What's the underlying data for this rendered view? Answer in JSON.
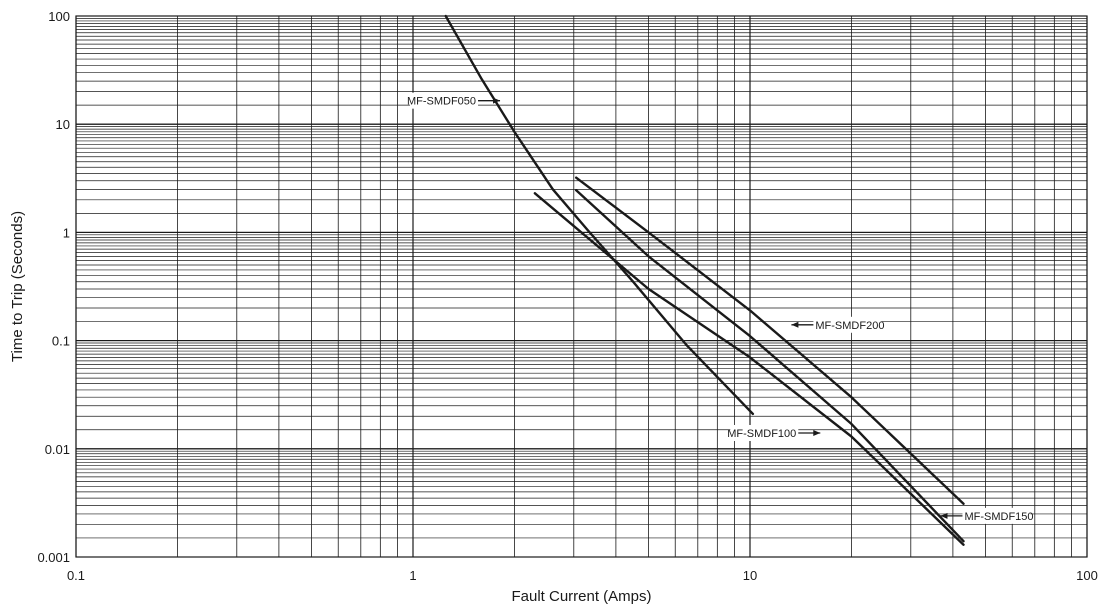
{
  "chart_data": {
    "type": "line",
    "title": "",
    "xlabel": "Fault Current  (Amps)",
    "ylabel": "Time to Trip (Seconds)",
    "x_scale": "log",
    "y_scale": "log",
    "xlim": [
      0.1,
      100
    ],
    "ylim": [
      0.001,
      100
    ],
    "grid": true,
    "x_tick_labels": [
      "0.1",
      "1",
      "10",
      "100"
    ],
    "y_tick_labels": [
      "0.001",
      "0.01",
      "0.1",
      "1",
      "10",
      "100"
    ],
    "colors": {
      "line": "#1a1a1a",
      "grid": "#1a1a1a",
      "background": "#ffffff"
    },
    "series": [
      {
        "name": "MF-SMDF050",
        "x": [
          1.25,
          1.6,
          2.0,
          2.6,
          3.3,
          4.5,
          6.5,
          10.2
        ],
        "y": [
          100,
          26,
          8.5,
          2.5,
          1.05,
          0.35,
          0.09,
          0.021
        ],
        "label_at": {
          "x": 1.85,
          "y": 16.5
        }
      },
      {
        "name": "MF-SMDF100",
        "x": [
          2.3,
          5,
          10,
          20,
          43
        ],
        "y": [
          2.3,
          0.3,
          0.07,
          0.013,
          0.0013
        ],
        "label_at": {
          "x": 16.5,
          "y": 0.014
        }
      },
      {
        "name": "MF-SMDF150",
        "x": [
          3.05,
          5,
          10,
          20,
          43
        ],
        "y": [
          2.45,
          0.6,
          0.11,
          0.017,
          0.0014
        ],
        "label_at": {
          "x": 36,
          "y": 0.0024
        }
      },
      {
        "name": "MF-SMDF200",
        "x": [
          3.05,
          5,
          10,
          20,
          43
        ],
        "y": [
          3.2,
          1.0,
          0.19,
          0.03,
          0.0031
        ],
        "label_at": {
          "x": 13,
          "y": 0.14
        }
      }
    ]
  }
}
